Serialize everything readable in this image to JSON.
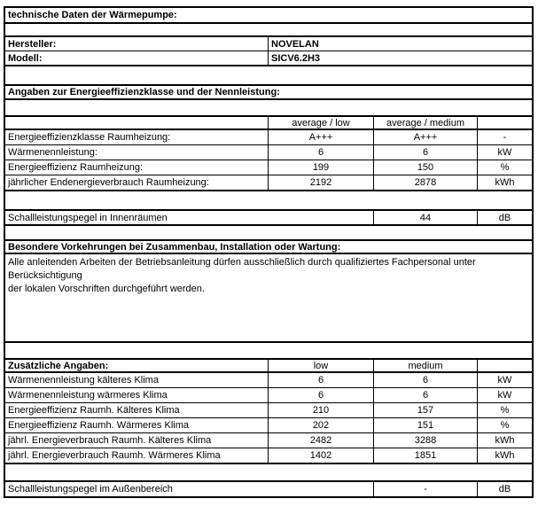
{
  "title": "technische Daten der Wärmepumpe:",
  "info": {
    "hersteller_label": "Hersteller:",
    "hersteller_value": "NOVELAN",
    "modell_label": "Modell:",
    "modell_value": "SICV6.2H3"
  },
  "section_energy": {
    "heading": "Angaben zur Energieeffizienzklasse und der Nennleistung:",
    "col_headers": {
      "low": "average / low",
      "medium": "average / medium"
    },
    "rows": [
      {
        "label": "Energieeffizienzklasse Raumheizung:",
        "low": "A+++",
        "medium": "A+++",
        "unit": "-"
      },
      {
        "label": "Wärmenennleistung:",
        "low": "6",
        "medium": "6",
        "unit": "kW"
      },
      {
        "label": "Energieeffizienz Raumheizung:",
        "low": "199",
        "medium": "150",
        "unit": "%"
      },
      {
        "label": "jährlicher Endenergieverbrauch Raumheizung:",
        "low": "2192",
        "medium": "2878",
        "unit": "kWh"
      }
    ]
  },
  "sound_indoor": {
    "label": "Schallleistungspegel in Innenräumen",
    "value": "44",
    "unit": "dB"
  },
  "section_precautions": {
    "heading": "Besondere Vorkehrungen bei Zusammenbau, Installation oder Wartung:",
    "line1": "Alle anleitenden Arbeiten der Betriebsanleitung dürfen ausschließlich durch qualifiziertes Fachpersonal unter Berücksichtigung",
    "line2": "der lokalen Vorschriften durchgeführt werden."
  },
  "section_additional": {
    "heading": "Zusätzliche Angaben:",
    "col_headers": {
      "low": "low",
      "medium": "medium"
    },
    "rows": [
      {
        "label": "Wärmenennleistung kälteres Klima",
        "low": "6",
        "medium": "6",
        "unit": "kW"
      },
      {
        "label": "Wärmenennleistung wärmeres Klima",
        "low": "6",
        "medium": "6",
        "unit": "kW"
      },
      {
        "label": "Energieeffizienz Raumh. Kälteres Klima",
        "low": "210",
        "medium": "157",
        "unit": "%"
      },
      {
        "label": "Energieeffizienz Raumh. Wärmeres Klima",
        "low": "202",
        "medium": "151",
        "unit": "%"
      },
      {
        "label": "jährl. Energieverbrauch Raumh. Kälteres Klima",
        "low": "2482",
        "medium": "3288",
        "unit": "kWh"
      },
      {
        "label": "jährl. Energieverbrauch Raumh. Wärmeres Klima",
        "low": "1402",
        "medium": "1851",
        "unit": "kWh"
      }
    ]
  },
  "sound_outdoor": {
    "label": "Schallleistungspegel im Außenbereich",
    "value": "-",
    "unit": "dB"
  }
}
